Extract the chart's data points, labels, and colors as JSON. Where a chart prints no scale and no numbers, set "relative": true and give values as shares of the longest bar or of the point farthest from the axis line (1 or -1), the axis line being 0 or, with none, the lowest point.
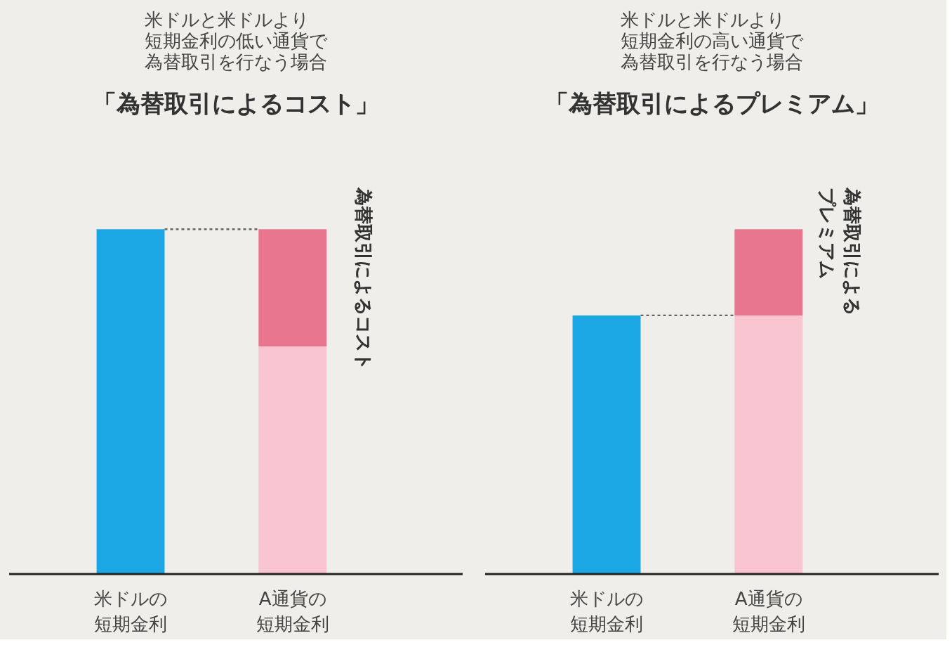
{
  "chart_data": [
    {
      "type": "bar",
      "relative": true,
      "stacked": true,
      "subtitle": "米ドルと米ドルより短期金利の低い通貨で為替取引を行なう場合",
      "title": "「為替取引によるコスト」",
      "categories": [
        "米ドルの短期金利",
        "A通貨の短期金利"
      ],
      "series": [
        {
          "color": "#1ba7e3",
          "values": [
            1,
            null
          ]
        },
        {
          "color": "#f7c4d0",
          "values": [
            null,
            0.66
          ]
        },
        {
          "color": "#e8768f",
          "values": [
            null,
            0.34
          ]
        }
      ],
      "ref_lines": [
        {
          "axis": "y",
          "value": 1,
          "line_style": "dotted",
          "color": "#666666"
        }
      ],
      "annotations": [
        "為替取引によるコスト"
      ]
    },
    {
      "type": "bar",
      "relative": true,
      "stacked": true,
      "subtitle": "米ドルと米ドルより短期金利の高い通貨で為替取引を行なう場合",
      "title": "「為替取引によるプレミアム」",
      "categories": [
        "米ドルの短期金利",
        "A通貨の短期金利"
      ],
      "series": [
        {
          "color": "#1ba7e3",
          "values": [
            0.75,
            null
          ]
        },
        {
          "color": "#f7c4d0",
          "values": [
            null,
            0.75
          ]
        },
        {
          "color": "#e8768f",
          "values": [
            null,
            0.25
          ]
        }
      ],
      "ref_lines": [
        {
          "axis": "y",
          "value": 0.75,
          "line_style": "dotted",
          "color": "#666666"
        }
      ],
      "annotations": [
        "為替取引によるプレミアム"
      ]
    }
  ]
}
